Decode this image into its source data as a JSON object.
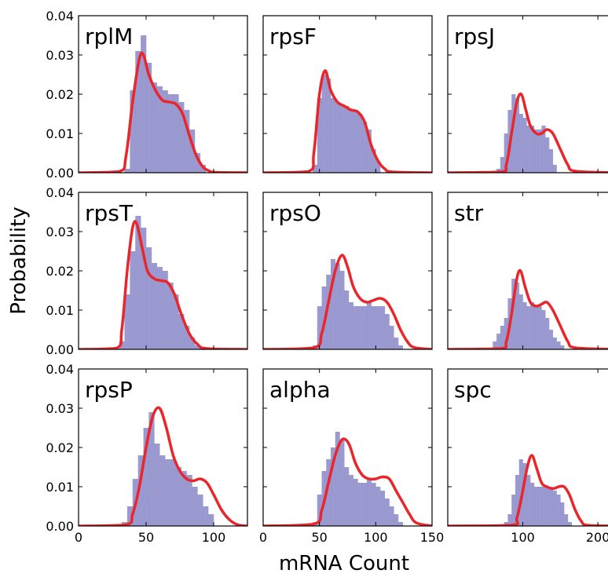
{
  "chart_data": {
    "type": "bar",
    "xlabel": "mRNA Count",
    "ylabel": "Probability",
    "grid": false,
    "ylim": [
      0,
      0.04
    ],
    "yticks": [
      "0.00",
      "0.01",
      "0.02",
      "0.03",
      "0.04"
    ],
    "columns": [
      {
        "xlim": [
          0,
          125
        ],
        "xticks": [
          0,
          50,
          100
        ],
        "xtick_labels": [
          "0",
          "50",
          "100"
        ]
      },
      {
        "xlim": [
          0,
          150
        ],
        "xticks": [
          0,
          50,
          100,
          150
        ],
        "xtick_labels": [
          "0",
          "50",
          "100",
          "150"
        ]
      },
      {
        "xlim": [
          0,
          225
        ],
        "xticks": [
          100,
          200
        ],
        "xtick_labels": [
          "100",
          "200"
        ]
      }
    ],
    "panels": [
      {
        "label": "rplM",
        "column": 0,
        "row": 0,
        "hist": {
          "start": 34,
          "bin_width": 4,
          "values": [
            0.001,
            0.021,
            0.031,
            0.035,
            0.028,
            0.023,
            0.022,
            0.021,
            0.02,
            0.02,
            0.018,
            0.016,
            0.011,
            0.005,
            0.002
          ]
        },
        "fit": {
          "x": [
            0,
            30,
            35,
            40,
            45,
            48,
            52,
            57,
            62,
            67,
            72,
            77,
            82,
            87,
            92,
            97,
            102,
            125
          ],
          "y": [
            0,
            0.0003,
            0.004,
            0.018,
            0.029,
            0.03,
            0.025,
            0.021,
            0.0185,
            0.018,
            0.0175,
            0.015,
            0.0095,
            0.0045,
            0.0015,
            0.0004,
            0.0001,
            0
          ]
        }
      },
      {
        "label": "rpsF",
        "column": 1,
        "row": 0,
        "hist": {
          "start": 44,
          "bin_width": 4,
          "values": [
            0.002,
            0.019,
            0.025,
            0.024,
            0.019,
            0.018,
            0.017,
            0.017,
            0.016,
            0.016,
            0.015,
            0.013,
            0.011,
            0.006,
            0.003
          ]
        },
        "fit": {
          "x": [
            0,
            40,
            45,
            50,
            55,
            60,
            66,
            72,
            78,
            84,
            90,
            96,
            102,
            108,
            115,
            150
          ],
          "y": [
            0,
            0.0003,
            0.005,
            0.02,
            0.026,
            0.021,
            0.018,
            0.017,
            0.016,
            0.0155,
            0.013,
            0.007,
            0.003,
            0.001,
            0.0002,
            0
          ]
        }
      },
      {
        "label": "rpsJ",
        "column": 2,
        "row": 0,
        "hist": {
          "start": 65,
          "bin_width": 5,
          "values": [
            0.001,
            0.004,
            0.01,
            0.016,
            0.02,
            0.019,
            0.015,
            0.014,
            0.012,
            0.012,
            0.011,
            0.011,
            0.012,
            0.009,
            0.006,
            0.002
          ]
        },
        "fit": {
          "x": [
            0,
            70,
            78,
            85,
            92,
            98,
            104,
            110,
            118,
            125,
            132,
            140,
            150,
            160,
            170,
            225
          ],
          "y": [
            0,
            0.0002,
            0.002,
            0.01,
            0.018,
            0.02,
            0.016,
            0.012,
            0.01,
            0.01,
            0.011,
            0.01,
            0.006,
            0.002,
            0.0004,
            0
          ]
        }
      },
      {
        "label": "rpsT",
        "column": 0,
        "row": 1,
        "hist": {
          "start": 30,
          "bin_width": 4,
          "values": [
            0.002,
            0.014,
            0.025,
            0.034,
            0.031,
            0.026,
            0.022,
            0.021,
            0.02,
            0.017,
            0.014,
            0.009,
            0.006,
            0.003,
            0.001
          ]
        },
        "fit": {
          "x": [
            0,
            28,
            32,
            36,
            40,
            43,
            47,
            51,
            56,
            61,
            66,
            71,
            76,
            82,
            88,
            95,
            125
          ],
          "y": [
            0,
            0.0003,
            0.005,
            0.02,
            0.031,
            0.032,
            0.026,
            0.02,
            0.018,
            0.0175,
            0.017,
            0.014,
            0.009,
            0.004,
            0.0013,
            0.0002,
            0
          ]
        }
      },
      {
        "label": "rpsO",
        "column": 1,
        "row": 1,
        "hist": {
          "start": 44,
          "bin_width": 4,
          "values": [
            0.001,
            0.011,
            0.016,
            0.019,
            0.023,
            0.022,
            0.02,
            0.015,
            0.012,
            0.011,
            0.011,
            0.011,
            0.012,
            0.011,
            0.011,
            0.011,
            0.009,
            0.006,
            0.003,
            0.001
          ]
        },
        "fit": {
          "x": [
            0,
            45,
            52,
            58,
            64,
            70,
            75,
            80,
            86,
            92,
            98,
            104,
            110,
            116,
            122,
            128,
            134,
            150
          ],
          "y": [
            0,
            0.0004,
            0.004,
            0.012,
            0.02,
            0.024,
            0.021,
            0.016,
            0.013,
            0.012,
            0.0125,
            0.013,
            0.012,
            0.009,
            0.005,
            0.002,
            0.0005,
            0
          ]
        }
      },
      {
        "label": "str",
        "column": 2,
        "row": 1,
        "hist": {
          "start": 60,
          "bin_width": 5,
          "values": [
            0.002,
            0.004,
            0.006,
            0.008,
            0.013,
            0.018,
            0.017,
            0.014,
            0.012,
            0.011,
            0.012,
            0.011,
            0.011,
            0.01,
            0.008,
            0.005,
            0.003,
            0.002,
            0.001
          ]
        },
        "fit": {
          "x": [
            0,
            70,
            78,
            85,
            92,
            97,
            103,
            110,
            118,
            125,
            132,
            140,
            150,
            160,
            170,
            225
          ],
          "y": [
            0,
            0.0002,
            0.002,
            0.009,
            0.018,
            0.02,
            0.016,
            0.012,
            0.011,
            0.0115,
            0.012,
            0.01,
            0.006,
            0.002,
            0.0004,
            0
          ]
        }
      },
      {
        "label": "rpsP",
        "column": 0,
        "row": 2,
        "hist": {
          "start": 32,
          "bin_width": 4,
          "values": [
            0.001,
            0.005,
            0.012,
            0.018,
            0.025,
            0.029,
            0.021,
            0.018,
            0.017,
            0.017,
            0.015,
            0.014,
            0.013,
            0.01,
            0.008,
            0.005,
            0.003
          ]
        },
        "fit": {
          "x": [
            0,
            35,
            40,
            45,
            50,
            55,
            60,
            65,
            70,
            75,
            80,
            85,
            90,
            95,
            100,
            106,
            112,
            118,
            125
          ],
          "y": [
            0,
            0.0003,
            0.003,
            0.01,
            0.02,
            0.028,
            0.03,
            0.025,
            0.018,
            0.014,
            0.012,
            0.0115,
            0.012,
            0.011,
            0.008,
            0.004,
            0.0015,
            0.0003,
            0
          ]
        }
      },
      {
        "label": "alpha",
        "column": 1,
        "row": 2,
        "hist": {
          "start": 44,
          "bin_width": 4,
          "values": [
            0.001,
            0.008,
            0.014,
            0.017,
            0.02,
            0.024,
            0.022,
            0.015,
            0.013,
            0.012,
            0.011,
            0.011,
            0.012,
            0.011,
            0.01,
            0.009,
            0.007,
            0.005,
            0.003,
            0.001
          ]
        },
        "fit": {
          "x": [
            0,
            45,
            52,
            58,
            64,
            70,
            76,
            82,
            88,
            94,
            100,
            106,
            112,
            118,
            124,
            130,
            136,
            150
          ],
          "y": [
            0,
            0.0005,
            0.004,
            0.011,
            0.018,
            0.022,
            0.021,
            0.016,
            0.013,
            0.012,
            0.012,
            0.0125,
            0.012,
            0.009,
            0.006,
            0.003,
            0.0008,
            0
          ]
        }
      },
      {
        "label": "spc",
        "column": 2,
        "row": 2,
        "hist": {
          "start": 75,
          "bin_width": 5,
          "values": [
            0.001,
            0.003,
            0.008,
            0.013,
            0.017,
            0.016,
            0.013,
            0.011,
            0.01,
            0.01,
            0.01,
            0.01,
            0.01,
            0.009,
            0.008,
            0.006,
            0.003,
            0.001
          ]
        },
        "fit": {
          "x": [
            0,
            85,
            92,
            99,
            106,
            112,
            118,
            125,
            132,
            140,
            148,
            155,
            162,
            170,
            178,
            186,
            225
          ],
          "y": [
            0,
            0.0002,
            0.002,
            0.008,
            0.015,
            0.018,
            0.015,
            0.011,
            0.01,
            0.0095,
            0.01,
            0.01,
            0.008,
            0.004,
            0.0012,
            0.0002,
            0
          ]
        }
      }
    ]
  }
}
